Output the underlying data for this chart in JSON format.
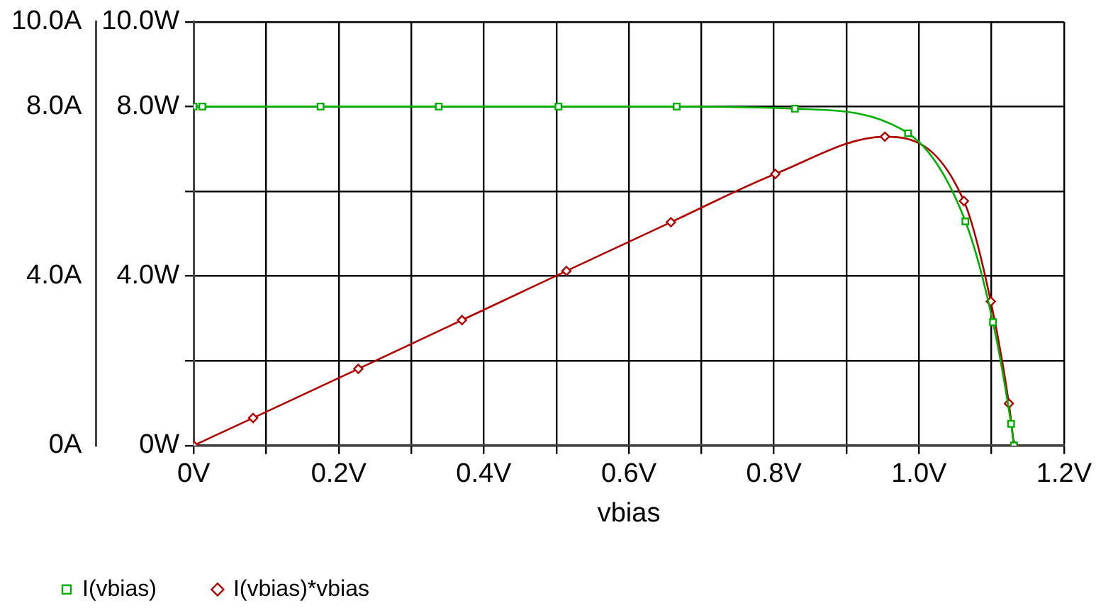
{
  "chart_data": {
    "type": "line",
    "xlabel": "vbias",
    "xlim": [
      0,
      1.2
    ],
    "xticks": [
      {
        "value": 0,
        "label": "0V"
      },
      {
        "value": 0.1,
        "label": null
      },
      {
        "value": 0.2,
        "label": "0.2V"
      },
      {
        "value": 0.3,
        "label": null
      },
      {
        "value": 0.4,
        "label": "0.4V"
      },
      {
        "value": 0.5,
        "label": null
      },
      {
        "value": 0.6,
        "label": "0.6V"
      },
      {
        "value": 0.7,
        "label": null
      },
      {
        "value": 0.8,
        "label": "0.8V"
      },
      {
        "value": 0.9,
        "label": null
      },
      {
        "value": 1.0,
        "label": "1.0V"
      },
      {
        "value": 1.1,
        "label": null
      },
      {
        "value": 1.2,
        "label": "1.2V"
      }
    ],
    "ylim": [
      0,
      10
    ],
    "yticks": [
      {
        "value": 0,
        "label": "0A"
      },
      {
        "value": 2,
        "label": null
      },
      {
        "value": 4,
        "label": "4.0A"
      },
      {
        "value": 6,
        "label": null
      },
      {
        "value": 8,
        "label": "8.0A"
      },
      {
        "value": 10,
        "label": "10.0A"
      }
    ],
    "y2lim": [
      0,
      10
    ],
    "y2ticks": [
      {
        "value": 0,
        "label": "0W"
      },
      {
        "value": 2,
        "label": null
      },
      {
        "value": 4,
        "label": "4.0W"
      },
      {
        "value": 6,
        "label": null
      },
      {
        "value": 8,
        "label": "8.0W"
      },
      {
        "value": 10,
        "label": "10.0W"
      }
    ],
    "grid": true,
    "legend": "bottom left",
    "line_style": "solid",
    "series": [
      {
        "name": "I(vbias)",
        "color": "#00b000",
        "marker": "square",
        "x": [
          0,
          0.012,
          0.175,
          0.338,
          0.503,
          0.666,
          0.829,
          0.985,
          1.064,
          1.102,
          1.127,
          1.131
        ],
        "values": [
          8.0,
          8.0,
          8.0,
          8.0,
          8.0,
          8.0,
          7.95,
          7.37,
          5.29,
          2.91,
          0.51,
          0
        ]
      },
      {
        "name": "I(vbias)*vbias",
        "color": "#b00000",
        "marker": "diamond",
        "axis": "y2",
        "x": [
          0,
          0.082,
          0.227,
          0.37,
          0.514,
          0.658,
          0.802,
          0.953,
          1.062,
          1.099,
          1.124,
          1.131
        ],
        "values": [
          0,
          0.65,
          1.81,
          2.96,
          4.12,
          5.27,
          6.41,
          7.29,
          5.77,
          3.4,
          0.99,
          0
        ]
      }
    ]
  }
}
